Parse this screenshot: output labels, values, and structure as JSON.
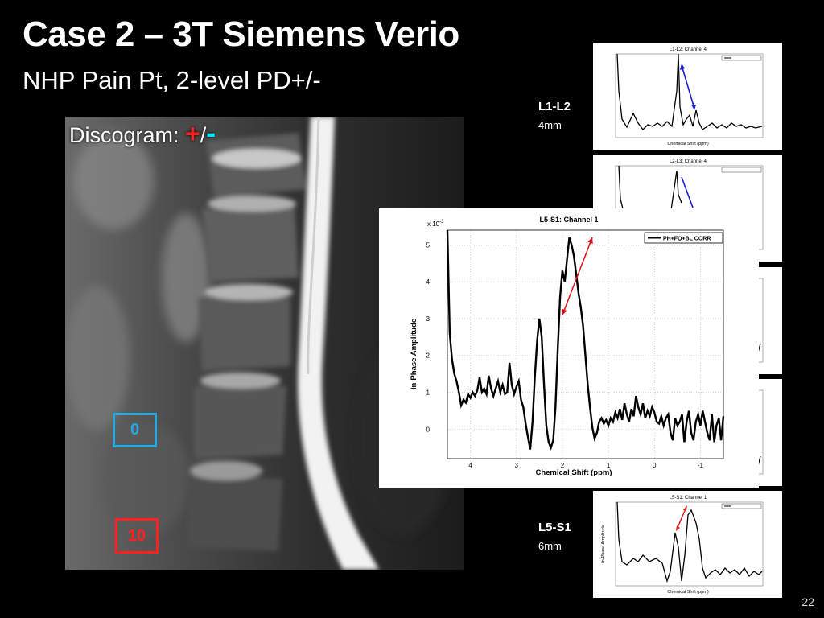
{
  "slide": {
    "title": "Case 2 – 3T Siemens Verio",
    "subtitle": "NHP Pain Pt, 2-level PD+/-",
    "discogram_label": "Discogram:",
    "discogram_plus": "+",
    "discogram_slash": "/",
    "discogram_minus": "-",
    "page_number": "22"
  },
  "scores": {
    "blue": "0",
    "red": "10"
  },
  "levels": [
    {
      "label": "L1-L2",
      "size": "4mm"
    },
    {
      "label": "L5-S1",
      "size": "6mm"
    }
  ],
  "thumbnails": [
    {
      "title": "L1-L2:  Channel 4",
      "arrow_color": "#1a1ad4"
    },
    {
      "title": "L2-L3:  Channel 4",
      "arrow_color": "#1a1ad4"
    },
    {
      "title": "L5-S1:  Channel 1",
      "arrow_color": "#e01010"
    }
  ],
  "chart_data": {
    "type": "line",
    "title": "L5-S1:  Channel 1",
    "xlabel": "Chemical Shift (ppm)",
    "ylabel": "In-Phase Amplitude",
    "scale_label": "x 10",
    "scale_exp": "-3",
    "xlim": [
      4.5,
      -1.5
    ],
    "ylim": [
      -0.8,
      5.4
    ],
    "xticks": [
      "4",
      "3",
      "2",
      "1",
      "0",
      "-1"
    ],
    "yticks": [
      "0",
      "1",
      "2",
      "3",
      "4",
      "5"
    ],
    "legend": "PH+FQ+BL CORR",
    "grid": true,
    "series": [
      {
        "x": [
          4.5,
          4.45,
          4.4,
          4.35,
          4.3,
          4.25,
          4.2,
          4.15,
          4.1,
          4.05,
          4.0,
          3.95,
          3.9,
          3.85,
          3.8,
          3.75,
          3.7,
          3.65,
          3.6,
          3.55,
          3.5,
          3.45,
          3.4,
          3.35,
          3.3,
          3.25,
          3.2,
          3.15,
          3.1,
          3.05,
          3.0,
          2.95,
          2.9,
          2.85,
          2.8,
          2.75,
          2.7,
          2.65,
          2.6,
          2.55,
          2.5,
          2.45,
          2.4,
          2.35,
          2.3,
          2.25,
          2.2,
          2.15,
          2.1,
          2.05,
          2.0,
          1.95,
          1.9,
          1.85,
          1.8,
          1.75,
          1.7,
          1.65,
          1.6,
          1.55,
          1.5,
          1.45,
          1.4,
          1.35,
          1.3,
          1.25,
          1.2,
          1.15,
          1.1,
          1.05,
          1.0,
          0.95,
          0.9,
          0.85,
          0.8,
          0.75,
          0.7,
          0.65,
          0.6,
          0.55,
          0.5,
          0.45,
          0.4,
          0.35,
          0.3,
          0.25,
          0.2,
          0.15,
          0.1,
          0.05,
          0.0,
          -0.05,
          -0.1,
          -0.15,
          -0.2,
          -0.25,
          -0.3,
          -0.35,
          -0.4,
          -0.45,
          -0.5,
          -0.55,
          -0.6,
          -0.65,
          -0.7,
          -0.75,
          -0.8,
          -0.85,
          -0.9,
          -0.95,
          -1.0,
          -1.05,
          -1.1,
          -1.15,
          -1.2,
          -1.25,
          -1.3,
          -1.35,
          -1.4,
          -1.45,
          -1.5
        ],
        "y": [
          5.4,
          2.6,
          1.9,
          1.5,
          1.3,
          1.0,
          0.65,
          0.8,
          0.72,
          0.95,
          0.85,
          1.0,
          0.9,
          1.05,
          1.4,
          1.0,
          1.1,
          0.95,
          1.45,
          1.1,
          0.9,
          1.1,
          1.3,
          1.0,
          1.2,
          0.95,
          1.0,
          1.8,
          1.2,
          0.95,
          1.15,
          1.3,
          0.8,
          0.6,
          0.15,
          -0.2,
          -0.55,
          0.2,
          1.4,
          2.4,
          3.0,
          2.5,
          1.2,
          0.1,
          -0.35,
          -0.5,
          -0.3,
          0.6,
          2.2,
          3.6,
          4.3,
          4.0,
          4.6,
          5.2,
          5.0,
          4.7,
          4.2,
          3.7,
          3.3,
          2.8,
          2.0,
          1.2,
          0.6,
          0.05,
          -0.25,
          -0.1,
          0.2,
          0.3,
          0.15,
          0.25,
          0.1,
          0.3,
          0.2,
          0.45,
          0.3,
          0.55,
          0.25,
          0.7,
          0.4,
          0.2,
          0.55,
          0.35,
          0.9,
          0.6,
          0.4,
          0.7,
          0.3,
          0.5,
          0.35,
          0.6,
          0.45,
          0.2,
          0.15,
          0.35,
          0.1,
          0.3,
          0.4,
          -0.1,
          -0.3,
          0.3,
          0.1,
          0.2,
          0.4,
          -0.35,
          0.2,
          0.5,
          -0.1,
          -0.3,
          0.2,
          0.4,
          0.1,
          0.5,
          0.2,
          -0.1,
          -0.3,
          0.4,
          -0.35,
          0.1,
          0.3,
          -0.3,
          0.35
        ]
      }
    ]
  }
}
